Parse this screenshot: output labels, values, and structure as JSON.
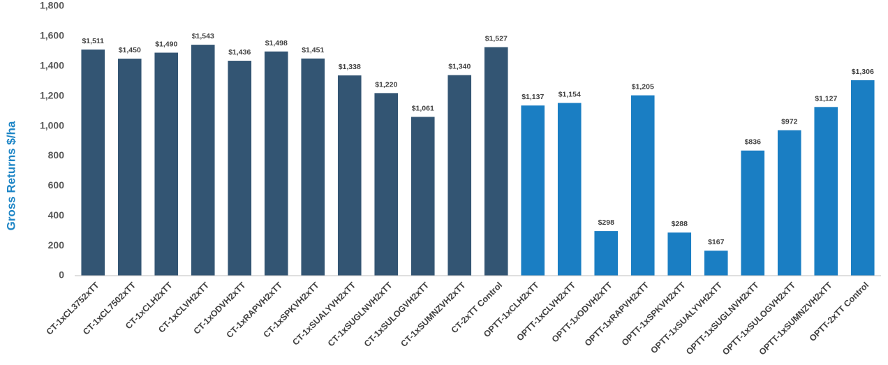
{
  "chart_data": {
    "type": "bar",
    "title": "",
    "xlabel": "",
    "ylabel": "Gross Returns $/ha",
    "ylim": [
      0,
      1800
    ],
    "yticks": [
      0,
      200,
      400,
      600,
      800,
      1000,
      1200,
      1400,
      1600,
      1800
    ],
    "ytick_labels": [
      "0",
      "200",
      "400",
      "600",
      "800",
      "1,000",
      "1,200",
      "1,400",
      "1,600",
      "1,800"
    ],
    "grid": false,
    "legend": "none",
    "categories": [
      "CT-1xCL3752xTT",
      "CT-1xCL7502xTT",
      "CT-1xCLH2xTT",
      "CT-1xCLVH2xTT",
      "CT-1xODVH2xTT",
      "CT-1xRAPVH2xTT",
      "CT-1xSPKVH2xTT",
      "CT-1xSUALYVH2xTT",
      "CT-1xSUGLNVH2xTT",
      "CT-1xSULOGVH2xTT",
      "CT-1xSUMNZVH2xTT",
      "CT-2xTT Control",
      "OPTT-1xCLH2xTT",
      "OPTT-1xCLVH2xTT",
      "OPTT-1xODVH2xTT",
      "OPTT-1xRAPVH2xTT",
      "OPTT-1xSPKVH2xTT",
      "OPTT-1xSUALYVH2xTT",
      "OPTT-1xSUGLNVH2xTT",
      "OPTT-1xSULOGVH2xTT",
      "OPTT-1xSUMNZVH2xTT",
      "OPTT-2xTT Control"
    ],
    "values": [
      1511,
      1450,
      1490,
      1543,
      1436,
      1498,
      1451,
      1338,
      1220,
      1061,
      1340,
      1527,
      1137,
      1154,
      298,
      1205,
      288,
      167,
      836,
      972,
      1127,
      1306
    ],
    "data_labels": [
      "$1,511",
      "$1,450",
      "$1,490",
      "$1,543",
      "$1,436",
      "$1,498",
      "$1,451",
      "$1,338",
      "$1,220",
      "$1,061",
      "$1,340",
      "$1,527",
      "$1,137",
      "$1,154",
      "$298",
      "$1,205",
      "$288",
      "$167",
      "$836",
      "$972",
      "$1,127",
      "$1,306"
    ],
    "bar_colors": [
      "#335573",
      "#335573",
      "#335573",
      "#335573",
      "#335573",
      "#335573",
      "#335573",
      "#335573",
      "#335573",
      "#335573",
      "#335573",
      "#335573",
      "#1a7ec3",
      "#1a7ec3",
      "#1a7ec3",
      "#1a7ec3",
      "#1a7ec3",
      "#1a7ec3",
      "#1a7ec3",
      "#1a7ec3",
      "#1a7ec3",
      "#1a7ec3"
    ],
    "colors": {
      "ylabel": "#1f86c6",
      "axis": "#bfbfbf"
    }
  }
}
